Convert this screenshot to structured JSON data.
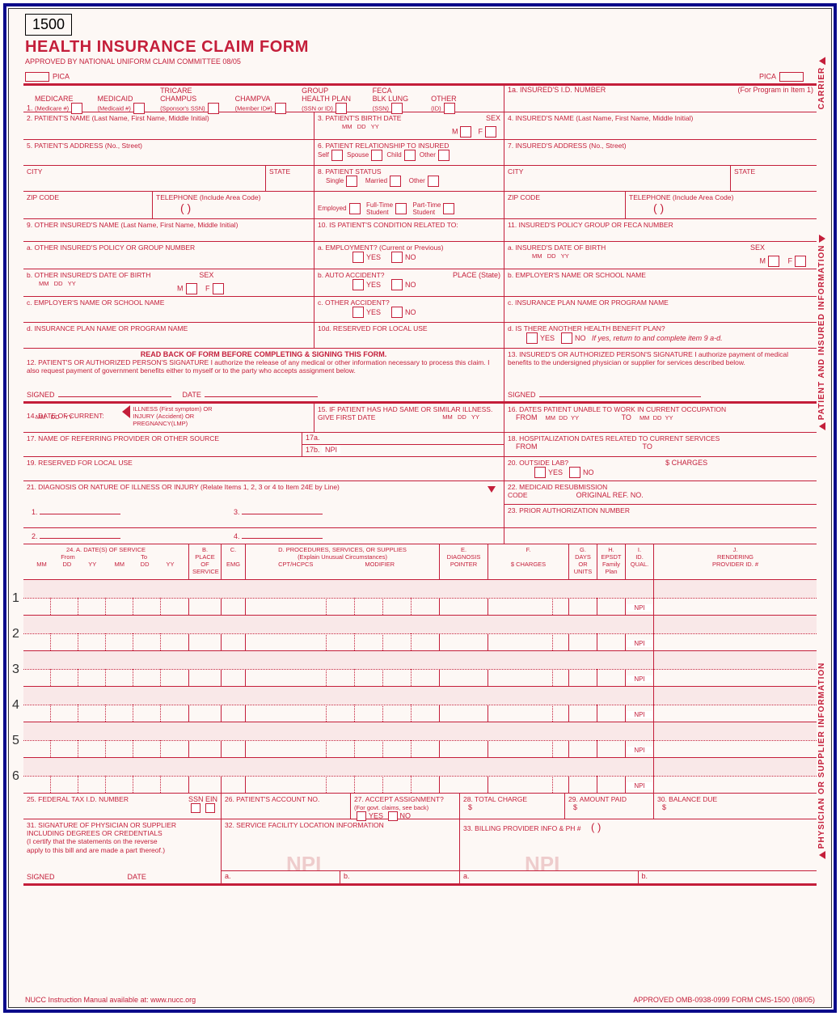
{
  "form_number": "1500",
  "title": "HEALTH INSURANCE CLAIM FORM",
  "approved": "APPROVED BY NATIONAL UNIFORM CLAIM COMMITTEE 08/05",
  "pica": "PICA",
  "carrier": "CARRIER",
  "section_patient": "PATIENT AND INSURED INFORMATION",
  "section_physician": "PHYSICIAN OR SUPPLIER INFORMATION",
  "row1": {
    "num": "1.",
    "medicare": "MEDICARE",
    "medicare_sub": "(Medicare #)",
    "medicaid": "MEDICAID",
    "medicaid_sub": "(Medicaid #)",
    "tricare": "TRICARE\nCHAMPUS",
    "tricare_sub": "(Sponsor's SSN)",
    "champva": "CHAMPVA",
    "champva_sub": "(Member ID#)",
    "group": "GROUP\nHEALTH PLAN",
    "group_sub": "(SSN or ID)",
    "feca": "FECA\nBLK LUNG",
    "feca_sub": "(SSN)",
    "other": "OTHER",
    "other_sub": "(ID)",
    "r1a": "1a. INSURED'S I.D. NUMBER",
    "r1a_note": "(For Program in Item 1)"
  },
  "row2": {
    "l": "2. PATIENT'S NAME (Last Name, First Name, Middle Initial)",
    "m": "3. PATIENT'S BIRTH DATE",
    "sex": "SEX",
    "mm": "MM",
    "dd": "DD",
    "yy": "YY",
    "M": "M",
    "F": "F",
    "r": "4. INSURED'S NAME (Last Name, First Name, Middle Initial)"
  },
  "row5": {
    "l": "5. PATIENT'S ADDRESS (No., Street)",
    "m": "6. PATIENT RELATIONSHIP TO INSURED",
    "self": "Self",
    "spouse": "Spouse",
    "child": "Child",
    "other": "Other",
    "r": "7. INSURED'S ADDRESS (No., Street)"
  },
  "rowcity": {
    "city": "CITY",
    "state": "STATE",
    "m": "8. PATIENT STATUS",
    "single": "Single",
    "married": "Married",
    "other": "Other"
  },
  "rowzip": {
    "zip": "ZIP CODE",
    "tel": "TELEPHONE (Include Area Code)",
    "emp": "Employed",
    "ft": "Full-Time\nStudent",
    "pt": "Part-Time\nStudent",
    "paren": "(         )"
  },
  "row9": {
    "l": "9. OTHER INSURED'S NAME (Last Name, First Name, Middle Initial)",
    "m": "10. IS PATIENT'S CONDITION RELATED TO:",
    "r": "11. INSURED'S POLICY GROUP OR FECA NUMBER"
  },
  "row9a": {
    "l": "a. OTHER INSURED'S POLICY OR GROUP NUMBER",
    "m": "a. EMPLOYMENT? (Current or Previous)",
    "yes": "YES",
    "no": "NO",
    "r": "a. INSURED'S DATE OF BIRTH",
    "sex": "SEX"
  },
  "row9b": {
    "l": "b. OTHER INSURED'S DATE OF BIRTH",
    "sex": "SEX",
    "m": "b. AUTO ACCIDENT?",
    "place": "PLACE (State)",
    "r": "b. EMPLOYER'S NAME OR SCHOOL NAME"
  },
  "row9c": {
    "l": "c. EMPLOYER'S NAME OR SCHOOL NAME",
    "m": "c. OTHER ACCIDENT?",
    "r": "c. INSURANCE PLAN NAME OR PROGRAM NAME"
  },
  "row9d": {
    "l": "d. INSURANCE PLAN NAME OR PROGRAM NAME",
    "m": "10d. RESERVED FOR LOCAL USE",
    "r": "d. IS THERE ANOTHER HEALTH BENEFIT PLAN?",
    "note": "If yes, return to and complete item 9 a-d."
  },
  "row12": {
    "hdr": "READ BACK OF FORM BEFORE COMPLETING & SIGNING THIS FORM.",
    "l": "12. PATIENT'S OR AUTHORIZED PERSON'S SIGNATURE  I authorize the release of any medical or other information necessary to process this claim. I also request payment of government benefits either to myself or to the party who accepts assignment below.",
    "r": "13. INSURED'S OR AUTHORIZED PERSON'S SIGNATURE I authorize payment of medical benefits to the undersigned physician or supplier for services described below.",
    "signed": "SIGNED",
    "date": "DATE"
  },
  "row14": {
    "l": "14. DATE OF CURRENT:",
    "ill": "ILLNESS (First symptom) OR\nINJURY (Accident) OR\nPREGNANCY(LMP)",
    "m": "15. IF PATIENT HAS HAD SAME OR SIMILAR ILLNESS.\n     GIVE FIRST DATE",
    "r": "16. DATES PATIENT UNABLE TO WORK IN CURRENT OCCUPATION",
    "from": "FROM",
    "to": "TO"
  },
  "row17": {
    "l": "17. NAME OF REFERRING PROVIDER OR OTHER SOURCE",
    "m1": "17a.",
    "m2": "17b.",
    "npi": "NPI",
    "r": "18. HOSPITALIZATION DATES RELATED TO CURRENT SERVICES"
  },
  "row19": {
    "l": "19. RESERVED FOR LOCAL USE",
    "r": "20. OUTSIDE LAB?",
    "charges": "$ CHARGES"
  },
  "row21": {
    "l": "21. DIAGNOSIS OR NATURE OF ILLNESS OR INJURY (Relate Items 1, 2, 3 or 4 to Item 24E by Line)",
    "n1": "1.",
    "n2": "2.",
    "n3": "3.",
    "n4": "4.",
    "r22": "22. MEDICAID RESUBMISSION\n     CODE",
    "ref": "ORIGINAL REF. NO.",
    "r23": "23. PRIOR AUTHORIZATION NUMBER"
  },
  "row24": {
    "a": "24. A.     DATE(S) OF SERVICE",
    "from": "From",
    "to": "To",
    "mm": "MM",
    "dd": "DD",
    "yy": "YY",
    "b": "B.\nPLACE OF\nSERVICE",
    "c": "C.\n\nEMG",
    "d": "D. PROCEDURES, SERVICES, OR SUPPLIES\n(Explain Unusual Circumstances)",
    "cpt": "CPT/HCPCS",
    "mod": "MODIFIER",
    "e": "E.\nDIAGNOSIS\nPOINTER",
    "f": "F.\n\n$ CHARGES",
    "g": "G.\nDAYS\nOR\nUNITS",
    "h": "H.\nEPSDT\nFamily\nPlan",
    "i": "I.\nID.\nQUAL.",
    "j": "J.\nRENDERING\nPROVIDER ID. #",
    "npi": "NPI"
  },
  "row25": {
    "l": "25. FEDERAL TAX I.D. NUMBER",
    "ssn": "SSN",
    "ein": "EIN",
    "m": "26. PATIENT'S ACCOUNT NO.",
    "r27": "27. ACCEPT ASSIGNMENT?",
    "r27s": "(For govt. claims, see back)",
    "r28": "28. TOTAL CHARGE",
    "r29": "29. AMOUNT PAID",
    "r30": "30. BALANCE DUE",
    "dollar": "$"
  },
  "row31": {
    "l": "31. SIGNATURE OF PHYSICIAN OR SUPPLIER\nINCLUDING DEGREES OR CREDENTIALS\n(I certify that the statements on the reverse\napply to this bill and are made a part thereof.)",
    "m": "32. SERVICE FACILITY LOCATION INFORMATION",
    "r": "33. BILLING PROVIDER INFO & PH #",
    "a": "a.",
    "b": "b.",
    "signed": "SIGNED",
    "date": "DATE"
  },
  "footer": {
    "l": "NUCC Instruction Manual available at: www.nucc.org",
    "r": "APPROVED OMB-0938-0999 FORM CMS-1500 (08/05)"
  },
  "colors": {
    "red": "#c41e3a",
    "blue": "#0a0a8a",
    "bg": "#fdf8f5",
    "shade": "#f9e8e8"
  },
  "svc_rows": [
    1,
    2,
    3,
    4,
    5,
    6
  ]
}
